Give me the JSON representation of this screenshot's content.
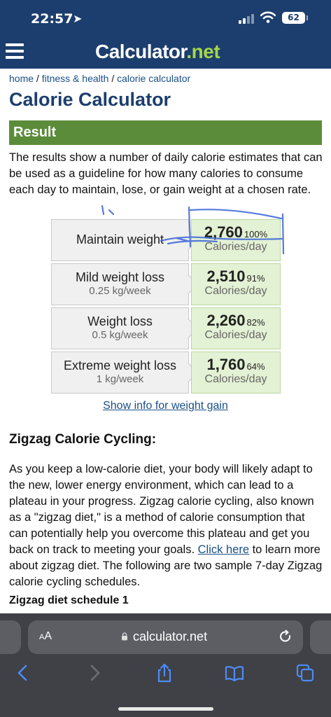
{
  "status_bar": {
    "time": "22:57",
    "battery": "62"
  },
  "site": {
    "logo_main": "Calculator",
    "logo_dot": ".",
    "logo_net": "net"
  },
  "breadcrumb": {
    "home": "home",
    "sep1": " / ",
    "fitness": "fitness & health",
    "sep2": " / ",
    "current": "calorie calculator"
  },
  "page_title": "Calorie Calculator",
  "result_heading": "Result",
  "intro_text": "The results show a number of daily calorie estimates that can be used as a guideline for how many calories to consume each day to maintain, lose, or gain weight at a chosen rate.",
  "results": [
    {
      "label": "Maintain weight",
      "sub": "",
      "value": "2,760",
      "percent": "100%",
      "unit": "Calories/day"
    },
    {
      "label": "Mild weight loss",
      "sub": "0.25 kg/week",
      "value": "2,510",
      "percent": "91%",
      "unit": "Calories/day"
    },
    {
      "label": "Weight loss",
      "sub": "0.5 kg/week",
      "value": "2,260",
      "percent": "82%",
      "unit": "Calories/day"
    },
    {
      "label": "Extreme weight loss",
      "sub": "1 kg/week",
      "value": "1,760",
      "percent": "64%",
      "unit": "Calories/day"
    }
  ],
  "gain_link": "Show info for weight gain",
  "zigzag": {
    "heading": "Zigzag Calorie Cycling:",
    "para_before_link": "As you keep a low-calorie diet, your body will likely adapt to the new, lower energy environment, which can lead to a plateau in your progress. Zigzag calorie cycling, also known as a \"zigzag diet,\" is a method of calorie consumption that can potentially help you overcome this plateau and get you back on track to meeting your goals. ",
    "link": "Click here",
    "para_after_link": " to learn more about zigzag diet. The following are two sample 7-day Zigzag calorie cycling schedules.",
    "schedule_heading": "Zigzag diet schedule 1"
  },
  "browser": {
    "aa_small": "A",
    "aa_big": "A",
    "url": "calculator.net"
  },
  "colors": {
    "header_blue": "#1c3e6e",
    "result_green": "#5b8c3a",
    "value_bg": "#e3f1d4",
    "link_blue": "#1a4f86",
    "logo_green": "#a5d64b"
  }
}
